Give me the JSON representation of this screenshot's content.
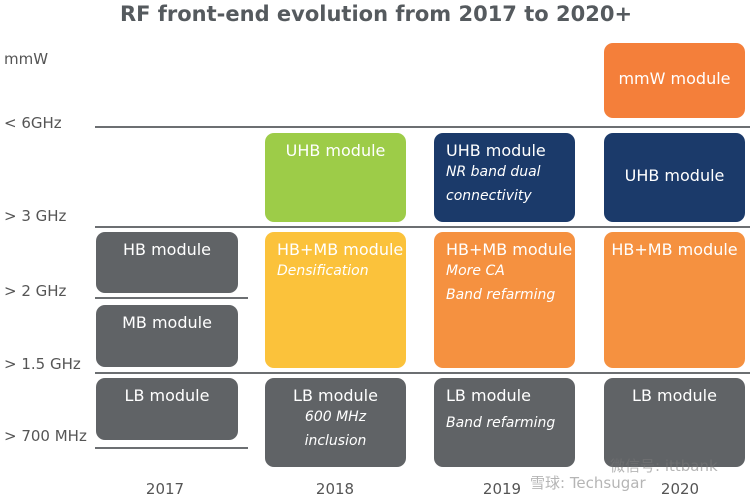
{
  "title": "RF front-end evolution from 2017 to 2020+",
  "rows": [
    "mmW",
    "< 6GHz",
    "> 3 GHz",
    "> 2 GHz",
    "> 1.5 GHz",
    "> 700 MHz"
  ],
  "columns": [
    "2017",
    "2018",
    "2019",
    "2020"
  ],
  "modules": [
    {
      "label": "HB module"
    },
    {
      "label": "MB module"
    },
    {
      "label": "LB module"
    },
    {
      "label": "UHB module"
    },
    {
      "label": "HB+MB module",
      "notes": [
        "Densification"
      ]
    },
    {
      "label": "LB module",
      "notes": [
        "600 MHz",
        "inclusion"
      ]
    },
    {
      "label": "UHB module",
      "notes": [
        "NR band dual",
        "connectivity"
      ]
    },
    {
      "label": "HB+MB module",
      "notes": [
        "More CA",
        "Band refarming"
      ]
    },
    {
      "label": "LB module",
      "notes": [
        "Band refarming"
      ]
    },
    {
      "label": "mmW module"
    },
    {
      "label": "UHB module"
    },
    {
      "label": "HB+MB module"
    },
    {
      "label": "LB module"
    }
  ],
  "watermark": [
    "雪球: Techsugar",
    "微信号: ittbank"
  ]
}
